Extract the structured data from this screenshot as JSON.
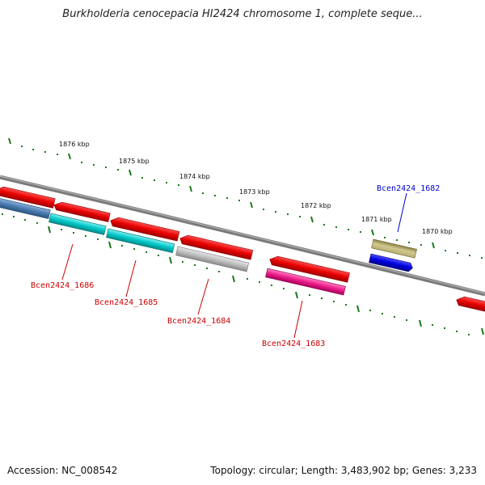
{
  "title": "Burkholderia cenocepacia HI2424 chromosome 1, complete seque...",
  "footer": {
    "accession": "Accession: NC_008542",
    "summary": "Topology: circular; Length: 3,483,902 bp; Genes: 3,233"
  },
  "scale": {
    "ticks": [
      {
        "label": "1876 kbp"
      },
      {
        "label": "1875 kbp"
      },
      {
        "label": "1874 kbp"
      },
      {
        "label": "1873 kbp"
      },
      {
        "label": "1872 kbp"
      },
      {
        "label": "1871 kbp"
      },
      {
        "label": "1870 kbp"
      }
    ]
  },
  "gene_labels": [
    {
      "text": "Bcen2424_1686",
      "color": "#cc0000"
    },
    {
      "text": "Bcen2424_1685",
      "color": "#cc0000"
    },
    {
      "text": "Bcen2424_1684",
      "color": "#cc0000"
    },
    {
      "text": "Bcen2424_1683",
      "color": "#cc0000"
    },
    {
      "text": "Bcen2424_1682",
      "color": "#0000cc"
    }
  ],
  "colors": {
    "backbone": "#7a7a7a",
    "tick": "#1a7a1a",
    "red": "#e80000",
    "cyan": "#00c8c8",
    "steel": "#4a7cb0",
    "gray": "#bcbcbc",
    "magenta": "#ee1d8a",
    "olive": "#b8b070",
    "blue": "#0000e0"
  }
}
